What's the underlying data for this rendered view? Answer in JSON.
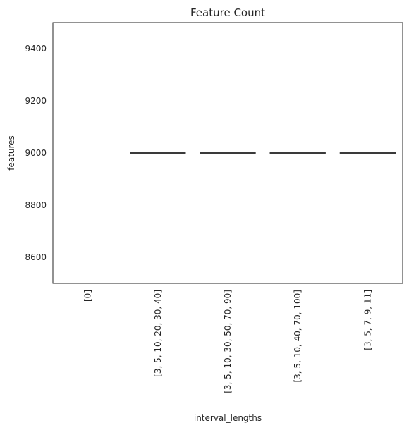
{
  "chart_data": {
    "type": "box",
    "title": "Feature Count",
    "xlabel": "interval_lengths",
    "ylabel": "features",
    "categories": [
      "[0]",
      "[3, 5, 10, 20, 30, 40]",
      "[3, 5, 10, 30, 50, 70, 90]",
      "[3, 5, 10, 40, 70, 100]",
      "[3, 5, 7, 9, 11]"
    ],
    "values": [
      null,
      9000,
      9000,
      9000,
      9000
    ],
    "ylim": [
      8500,
      9500
    ],
    "yticks": [
      8600,
      8800,
      9000,
      9200,
      9400
    ],
    "grid": false,
    "legend": "none",
    "colors": {
      "line": "#3a3a3a",
      "frame": "#262626",
      "text": "#262626"
    }
  }
}
